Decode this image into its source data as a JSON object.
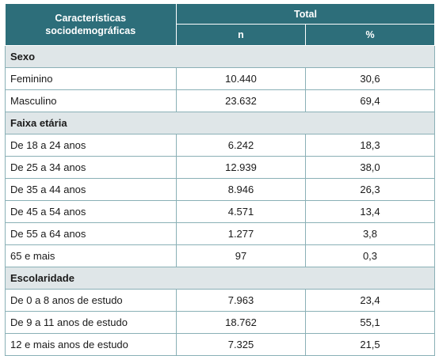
{
  "header": {
    "characteristics_line1": "Características",
    "characteristics_line2": "sociodemográficas",
    "total": "Total",
    "n": "n",
    "percent": "%"
  },
  "sections": [
    {
      "title": "Sexo",
      "rows": [
        {
          "label": "Feminino",
          "n": "10.440",
          "pct": "30,6"
        },
        {
          "label": "Masculino",
          "n": "23.632",
          "pct": "69,4"
        }
      ]
    },
    {
      "title": "Faixa etária",
      "rows": [
        {
          "label": "De 18 a 24 anos",
          "n": "6.242",
          "pct": "18,3"
        },
        {
          "label": "De 25 a 34 anos",
          "n": "12.939",
          "pct": "38,0"
        },
        {
          "label": "De 35 a 44 anos",
          "n": "8.946",
          "pct": "26,3"
        },
        {
          "label": "De 45 a 54 anos",
          "n": "4.571",
          "pct": "13,4"
        },
        {
          "label": "De 55 a 64 anos",
          "n": "1.277",
          "pct": "3,8"
        },
        {
          "label": "65 e mais",
          "n": "97",
          "pct": "0,3"
        }
      ]
    },
    {
      "title": "Escolaridade",
      "rows": [
        {
          "label": "De 0 a 8 anos de estudo",
          "n": "7.963",
          "pct": "23,4"
        },
        {
          "label": "De 9 a 11 anos de estudo",
          "n": "18.762",
          "pct": "55,1"
        },
        {
          "label": "12 e mais anos de estudo",
          "n": "7.325",
          "pct": "21,5"
        }
      ]
    }
  ]
}
